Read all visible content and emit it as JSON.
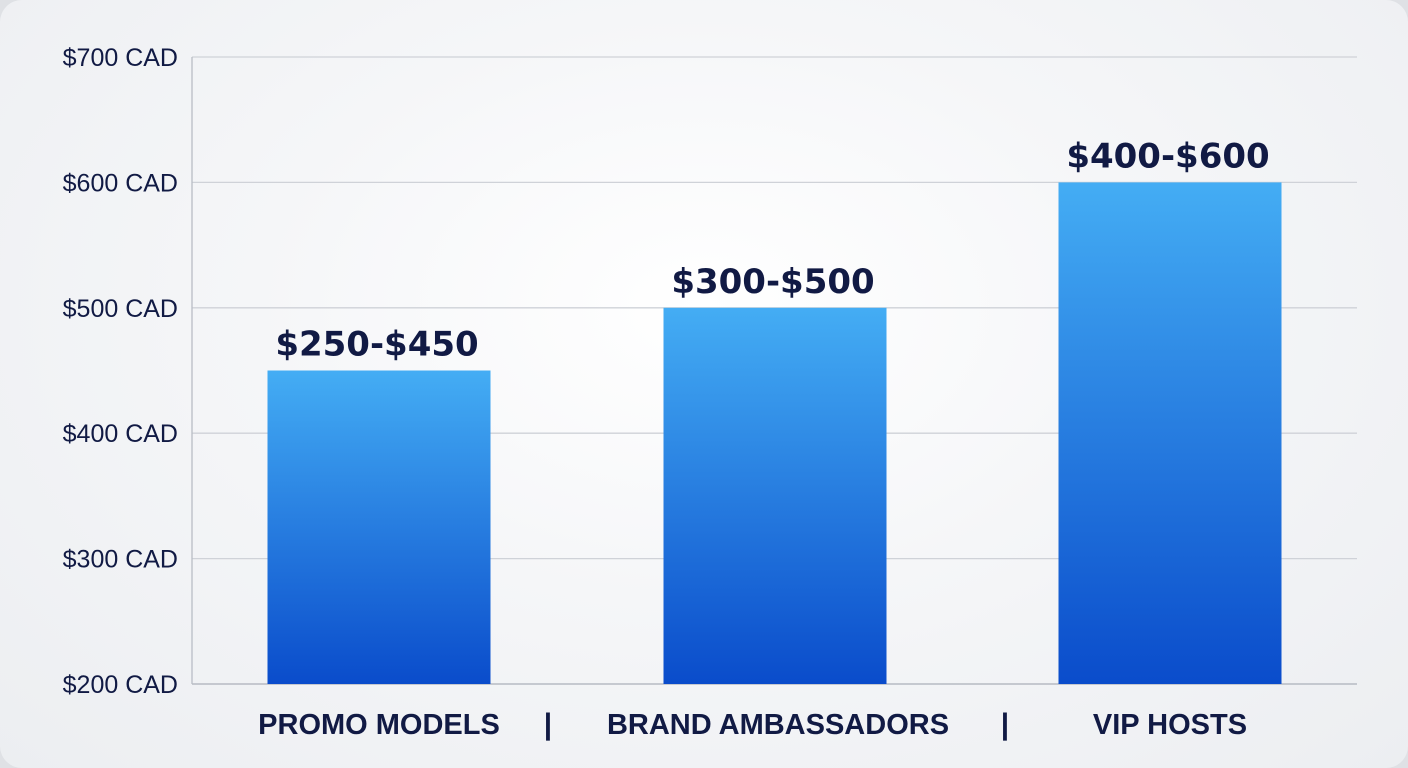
{
  "chart_data": {
    "type": "bar",
    "categories": [
      "PROMO MODELS",
      "BRAND AMBASSADORS",
      "VIP HOSTS"
    ],
    "category_separator": "|",
    "values": [
      450,
      500,
      600
    ],
    "data_labels": [
      "$250-$450",
      "$300-$500",
      "$400-$600"
    ],
    "y_ticks": [
      200,
      300,
      400,
      500,
      600,
      700
    ],
    "y_tick_labels": [
      "$200 CAD",
      "$300 CAD",
      "$400 CAD",
      "$500 CAD",
      "$600 CAD",
      "$700 CAD"
    ],
    "ylim": [
      200,
      700
    ],
    "grid": true,
    "title": "",
    "xlabel": "",
    "ylabel": "",
    "colors": {
      "bar_top": "#44adf4",
      "bar_bottom": "#0a4ccb",
      "text": "#111a44",
      "grid": "#cfd2d8"
    }
  }
}
